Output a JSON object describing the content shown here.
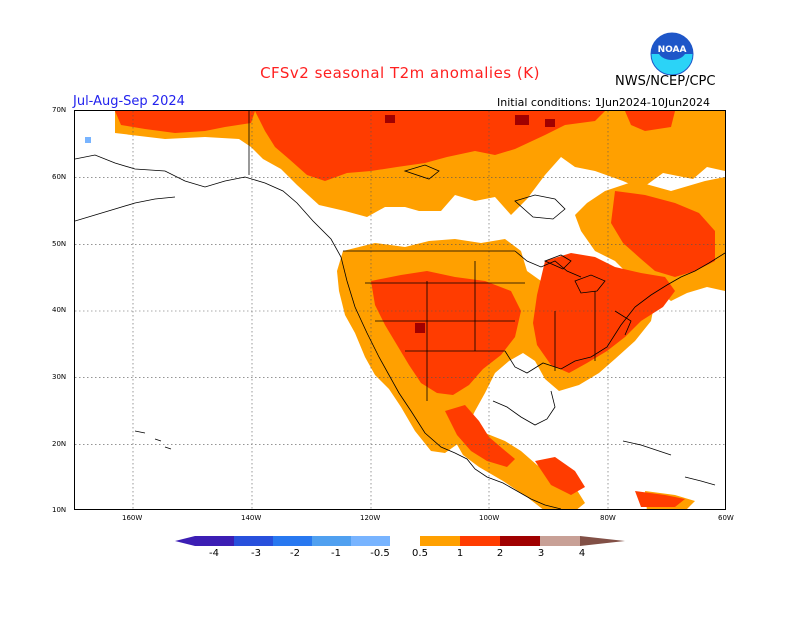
{
  "header": {
    "title": "CFSv2 seasonal T2m anomalies (K)",
    "agency": "NWS/NCEP/CPC",
    "season": "Jul-Aug-Sep 2024",
    "initial_conditions": "Initial conditions: 1Jun2024-10Jun2024",
    "logo": {
      "text": "NOAA",
      "colors": {
        "blue": "#1e56c8",
        "cyan": "#2bd3f7"
      }
    }
  },
  "map": {
    "lat_labels": [
      "70N",
      "60N",
      "50N",
      "40N",
      "30N",
      "20N",
      "10N"
    ],
    "lon_labels": [
      "160W",
      "140W",
      "120W",
      "100W",
      "80W",
      "60W"
    ],
    "anomaly_colors": {
      "0.5-1": "#ffa000",
      "1-2": "#ff3c00",
      "2-3": "#a00000",
      "-1--0.5": "#78b4ff"
    }
  },
  "legend": {
    "labels": [
      "-4",
      "-3",
      "-2",
      "-1",
      "-0.5",
      "0.5",
      "1",
      "2",
      "3",
      "4"
    ],
    "colors": [
      "#3c1eb4",
      "#2850dc",
      "#2878f0",
      "#50a0f0",
      "#78b4ff",
      "#ffffff",
      "#ffa000",
      "#ff3c00",
      "#a00000",
      "#c8a096",
      "#825046"
    ]
  }
}
